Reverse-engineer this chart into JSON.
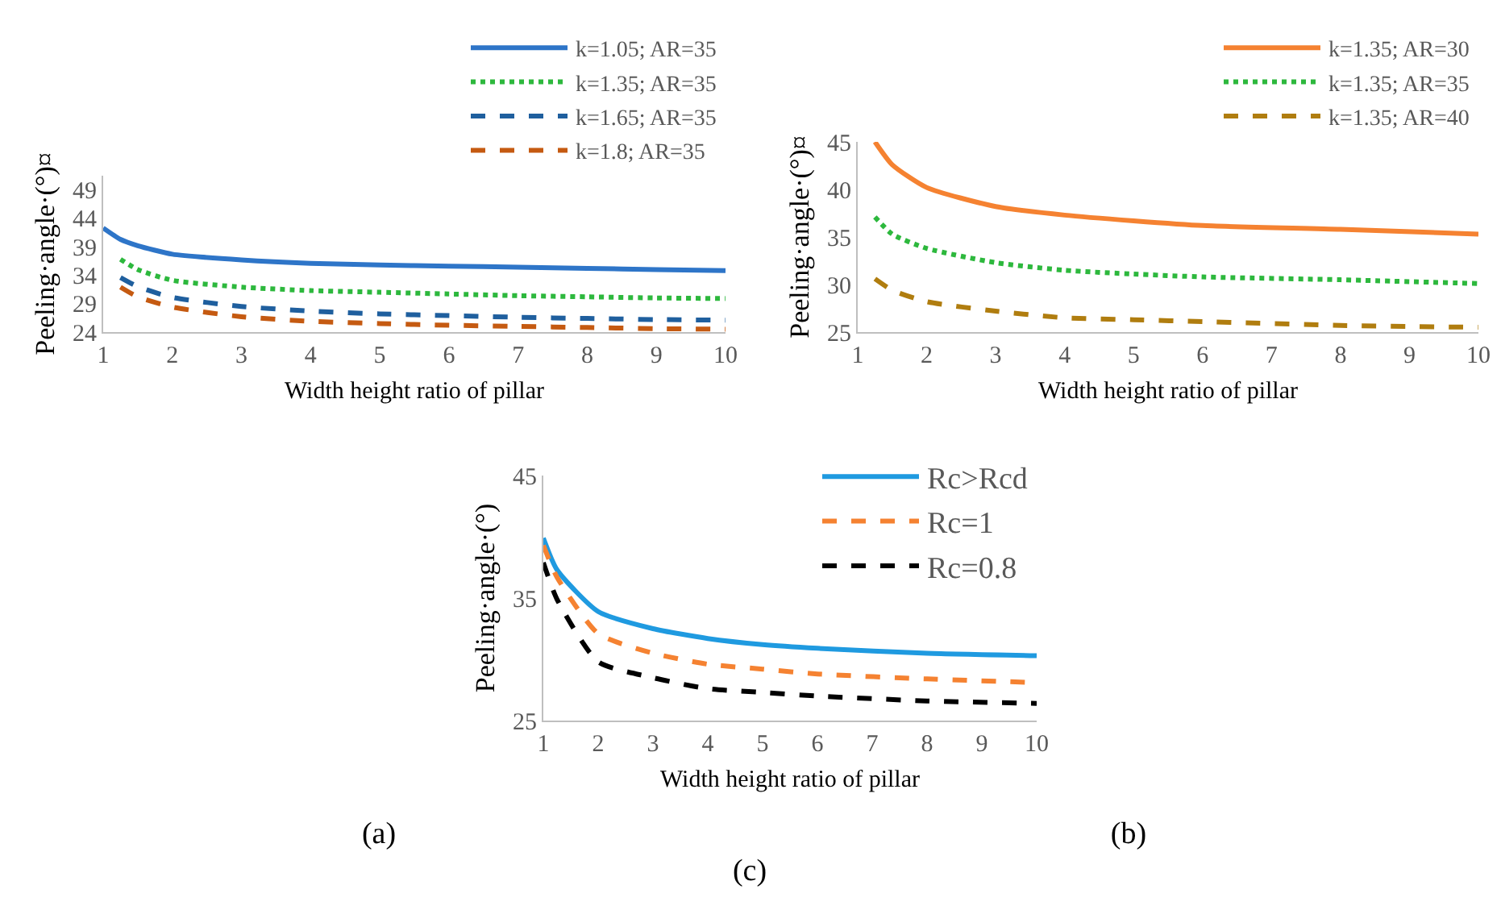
{
  "chart_data": [
    {
      "type": "line",
      "xlabel": "Width height ratio of pillar",
      "ylabel": "Peeling·angle·(°)¤",
      "xlim": [
        1,
        10
      ],
      "xticks": [
        1,
        2,
        3,
        4,
        5,
        6,
        7,
        8,
        9,
        10
      ],
      "ylim": [
        24,
        51.5
      ],
      "yticks": [
        24,
        29,
        34,
        39,
        44,
        49
      ],
      "grid": false,
      "legend": "top right",
      "marker": "none",
      "annotations": [
        "(a)"
      ],
      "series": [
        {
          "name": "k=1.05; AR=35",
          "color": "#2e75c8",
          "line_style": "solid",
          "x": [
            1,
            1.25,
            1.5,
            2,
            3,
            4,
            5,
            6,
            7,
            8,
            9,
            10
          ],
          "values": [
            42.3,
            40.3,
            39.2,
            37.7,
            36.7,
            36.1,
            35.8,
            35.6,
            35.4,
            35.2,
            35.0,
            34.8
          ]
        },
        {
          "name": "k=1.35; AR=35",
          "color": "#2db83d",
          "line_style": "dotted",
          "x": [
            1.25,
            1.5,
            2,
            3,
            4,
            5,
            6,
            7,
            8,
            9,
            10
          ],
          "values": [
            36.8,
            35.0,
            33.1,
            31.9,
            31.3,
            31.0,
            30.7,
            30.4,
            30.2,
            30.0,
            29.9
          ]
        },
        {
          "name": "k=1.65; AR=35",
          "color": "#1f5f9e",
          "line_style": "dashed",
          "x": [
            1.25,
            1.5,
            2,
            3,
            4,
            5,
            6,
            7,
            8,
            9,
            10
          ],
          "values": [
            33.6,
            32.0,
            30.1,
            28.5,
            27.7,
            27.2,
            26.9,
            26.6,
            26.4,
            26.2,
            26.1
          ]
        },
        {
          "name": "k=1.8; AR=35",
          "color": "#c55a11",
          "line_style": "dashed",
          "x": [
            1.25,
            1.5,
            2,
            3,
            4,
            5,
            6,
            7,
            8,
            9,
            10
          ],
          "values": [
            31.9,
            30.2,
            28.4,
            26.7,
            25.9,
            25.5,
            25.2,
            25.0,
            24.8,
            24.6,
            24.5
          ]
        }
      ]
    },
    {
      "type": "line",
      "xlabel": "Width height ratio of pillar",
      "ylabel": "Peeling·angle·(°)¤",
      "xlim": [
        1,
        10
      ],
      "xticks": [
        1,
        2,
        3,
        4,
        5,
        6,
        7,
        8,
        9,
        10
      ],
      "ylim": [
        25,
        45
      ],
      "yticks": [
        25,
        30,
        35,
        40,
        45
      ],
      "grid": false,
      "legend": "top right",
      "marker": "none",
      "annotations": [
        "(b)"
      ],
      "series": [
        {
          "name": "k=1.35; AR=30",
          "color": "#f58231",
          "line_style": "solid",
          "x": [
            1.25,
            1.5,
            2,
            3,
            4,
            5,
            6,
            8,
            10
          ],
          "values": [
            45.0,
            42.6,
            40.2,
            38.2,
            37.3,
            36.7,
            36.2,
            35.8,
            35.3
          ]
        },
        {
          "name": "k=1.35; AR=35",
          "color": "#2db83d",
          "line_style": "dotted",
          "x": [
            1.25,
            1.5,
            2,
            3,
            4,
            5,
            6,
            8,
            10
          ],
          "values": [
            37.1,
            35.3,
            33.8,
            32.3,
            31.5,
            31.1,
            30.8,
            30.5,
            30.1
          ]
        },
        {
          "name": "k=1.35; AR=40",
          "color": "#b07d0f",
          "line_style": "dashed",
          "x": [
            1.25,
            1.5,
            2,
            3,
            4,
            5,
            6,
            8,
            10
          ],
          "values": [
            30.6,
            29.4,
            28.2,
            27.2,
            26.5,
            26.3,
            26.1,
            25.7,
            25.5
          ]
        }
      ]
    },
    {
      "type": "line",
      "xlabel": "Width height ratio of pillar",
      "ylabel": "Peeling·angle·(°)",
      "xlim": [
        1,
        10
      ],
      "xticks": [
        1,
        2,
        3,
        4,
        5,
        6,
        7,
        8,
        9,
        10
      ],
      "ylim": [
        25,
        45
      ],
      "yticks": [
        25,
        35,
        45
      ],
      "grid": false,
      "legend": "top right",
      "marker": "none",
      "annotations": [
        "(c)"
      ],
      "series": [
        {
          "name": "Rc>Rcd",
          "color": "#1f9ae0",
          "line_style": "solid",
          "x": [
            1,
            1.25,
            2,
            3,
            4,
            5,
            6,
            8,
            10
          ],
          "values": [
            39.9,
            37.3,
            33.9,
            32.5,
            31.7,
            31.2,
            30.9,
            30.5,
            30.3
          ]
        },
        {
          "name": "Rc=1",
          "color": "#f58231",
          "line_style": "dashed",
          "x": [
            1,
            1.25,
            2,
            3,
            4,
            5,
            6,
            8,
            10
          ],
          "values": [
            39.3,
            36.7,
            32.1,
            30.5,
            29.6,
            29.2,
            28.8,
            28.4,
            28.1
          ]
        },
        {
          "name": "Rc=0.8",
          "color": "#000000",
          "line_style": "dashed",
          "x": [
            1,
            1.25,
            2,
            3,
            4,
            5,
            6,
            8,
            10
          ],
          "values": [
            37.9,
            34.9,
            29.8,
            28.5,
            27.6,
            27.3,
            27.0,
            26.6,
            26.4
          ]
        }
      ]
    }
  ]
}
